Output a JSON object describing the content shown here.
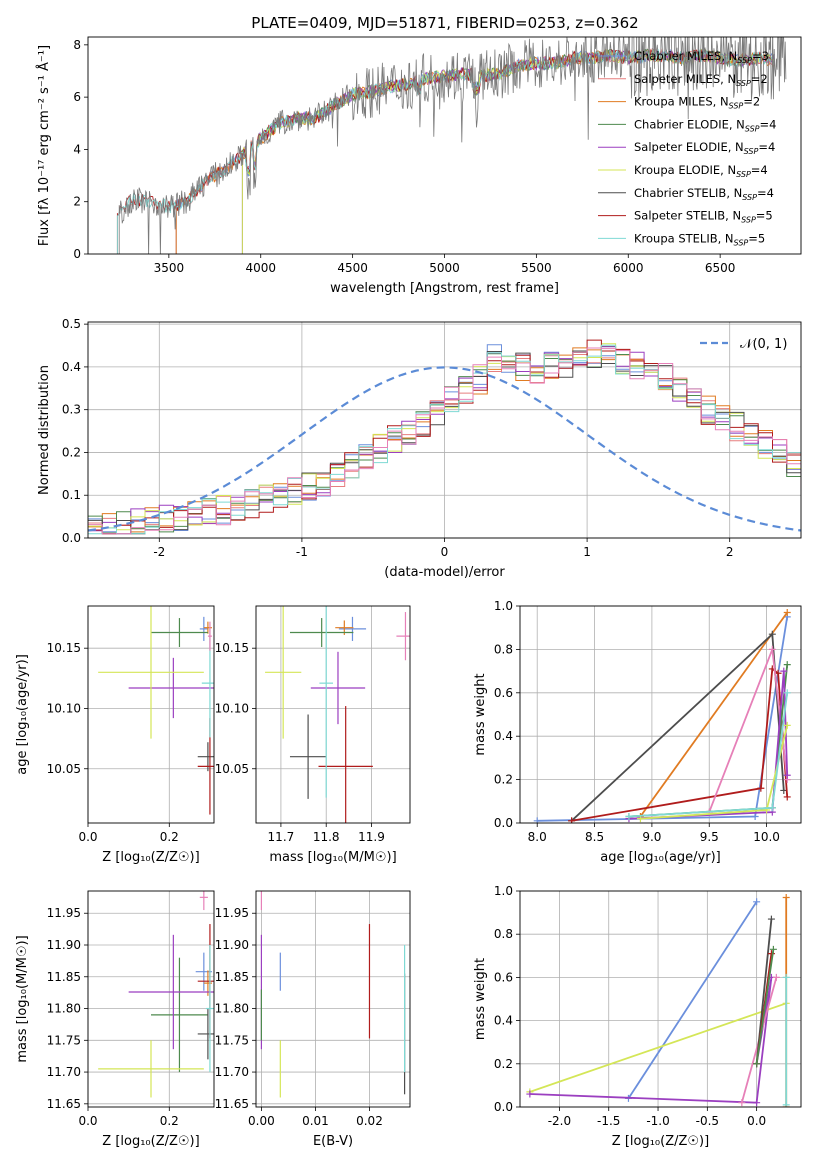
{
  "figure_title": "PLATE=0409, MJD=51871, FIBERID=0253, z=0.362",
  "colors": {
    "Chabrier MILES": "#6b8fdc",
    "Salpeter MILES": "#e77f7f",
    "Kroupa MILES": "#e07b22",
    "Chabrier ELODIE": "#4e8a4e",
    "Salpeter ELODIE": "#9b3fc0",
    "Kroupa ELODIE": "#d4e657",
    "Chabrier STELIB": "#4d4d4d",
    "Salpeter STELIB": "#b01c1c",
    "Kroupa STELIB": "#7fd9d4",
    "Pink": "#e680b8",
    "Green2": "#90d090",
    "grid": "#b0b0b0"
  },
  "chart_data": [
    {
      "id": "spectrum",
      "type": "line",
      "title": "PLATE=0409, MJD=51871, FIBERID=0253, z=0.362",
      "xlabel": "wavelength [Angstrom, rest frame]",
      "ylabel": "Flux [fλ 10⁻¹⁷ erg cm⁻² s⁻¹ Å⁻¹]",
      "xlim": [
        3060,
        6940
      ],
      "ylim": [
        0,
        8.3
      ],
      "xticks": [
        3500,
        4000,
        4500,
        5000,
        5500,
        6000,
        6500
      ],
      "yticks": [
        0,
        2,
        4,
        6,
        8
      ],
      "continuum_points": [
        [
          3200,
          1.3
        ],
        [
          3250,
          1.7
        ],
        [
          3300,
          2.1
        ],
        [
          3400,
          2.0
        ],
        [
          3500,
          1.8
        ],
        [
          3600,
          2.0
        ],
        [
          3700,
          2.8
        ],
        [
          3800,
          3.2
        ],
        [
          3900,
          3.8
        ],
        [
          4000,
          4.4
        ],
        [
          4100,
          5.0
        ],
        [
          4200,
          5.2
        ],
        [
          4300,
          5.2
        ],
        [
          4400,
          5.7
        ],
        [
          4500,
          6.1
        ],
        [
          4600,
          6.2
        ],
        [
          4700,
          6.4
        ],
        [
          4800,
          6.5
        ],
        [
          4900,
          6.7
        ],
        [
          5000,
          6.8
        ],
        [
          5100,
          6.9
        ],
        [
          5200,
          6.8
        ],
        [
          5300,
          6.9
        ],
        [
          5400,
          7.2
        ],
        [
          5500,
          7.3
        ],
        [
          5600,
          7.3
        ],
        [
          5700,
          7.5
        ],
        [
          5800,
          7.5
        ],
        [
          5900,
          7.6
        ],
        [
          6000,
          7.5
        ],
        [
          6100,
          7.6
        ],
        [
          6200,
          7.6
        ],
        [
          6300,
          7.5
        ],
        [
          6400,
          7.6
        ],
        [
          6500,
          7.5
        ],
        [
          6600,
          7.4
        ],
        [
          6700,
          7.5
        ],
        [
          6800,
          7.4
        ]
      ],
      "legend": [
        "Chabrier MILES, N_SSP=3",
        "Salpeter MILES, N_SSP=2",
        "Kroupa MILES, N_SSP=2",
        "Chabrier ELODIE, N_SSP=4",
        "Salpeter ELODIE, N_SSP=4",
        "Kroupa ELODIE, N_SSP=4",
        "Chabrier STELIB, N_SSP=4",
        "Salpeter STELIB, N_SSP=5",
        "Kroupa STELIB, N_SSP=5"
      ],
      "legend_location": "lower right"
    },
    {
      "id": "residuals",
      "type": "line",
      "xlabel": "(data-model)/error",
      "ylabel": "Normed distribution",
      "xlim": [
        -2.5,
        2.5
      ],
      "ylim": [
        0,
        0.505
      ],
      "xticks": [
        -2,
        -1,
        0,
        1,
        2
      ],
      "yticks": [
        0.0,
        0.1,
        0.2,
        0.3,
        0.4,
        0.5
      ],
      "legend": [
        "𝒩(0, 1)"
      ],
      "legend_location": "upper right",
      "bin_width": 0.1,
      "bin_start": -2.5,
      "base_hist": [
        0.025,
        0.028,
        0.03,
        0.035,
        0.04,
        0.045,
        0.05,
        0.055,
        0.06,
        0.065,
        0.07,
        0.08,
        0.09,
        0.1,
        0.11,
        0.12,
        0.13,
        0.15,
        0.17,
        0.19,
        0.21,
        0.23,
        0.25,
        0.27,
        0.29,
        0.32,
        0.35,
        0.37,
        0.42,
        0.42,
        0.4,
        0.39,
        0.4,
        0.4,
        0.41,
        0.43,
        0.42,
        0.41,
        0.4,
        0.39,
        0.38,
        0.34,
        0.32,
        0.3,
        0.28,
        0.26,
        0.24,
        0.22,
        0.2,
        0.17,
        0.14,
        0.12,
        0.1,
        0.09,
        0.08,
        0.07,
        0.06,
        0.05,
        0.045,
        0.04,
        0.035,
        0.03,
        0.03,
        0.028,
        0.025,
        0.03,
        0.035,
        0.04,
        0.03,
        0.035
      ]
    },
    {
      "id": "age_vs_Z",
      "type": "scatter",
      "xlabel": "Z [log₁₀(Z/Z☉)]",
      "ylabel": "age  [log₁₀(age/yr)]",
      "xlim": [
        0.0,
        0.31
      ],
      "ylim": [
        10.005,
        10.185
      ],
      "xticks": [
        0.0,
        0.2
      ],
      "yticks": [
        10.05,
        10.1,
        10.15
      ],
      "points": [
        {
          "series": "Chabrier MILES",
          "x": 0.285,
          "y": 10.166,
          "xerr": 0.01,
          "yerr": 0.01
        },
        {
          "series": "Kroupa MILES",
          "x": 0.295,
          "y": 10.167,
          "xerr": 0.01,
          "yerr": 0.005
        },
        {
          "series": "Chabrier ELODIE",
          "x": 0.225,
          "y": 10.163,
          "xerr": 0.07,
          "yerr": 0.012
        },
        {
          "series": "Salpeter ELODIE",
          "x": 0.21,
          "y": 10.117,
          "xerr": 0.11,
          "yerr": 0.025
        },
        {
          "series": "Kroupa ELODIE",
          "x": 0.155,
          "y": 10.13,
          "xerr": 0.13,
          "yerr": 0.055
        },
        {
          "series": "Chabrier STELIB",
          "x": 0.295,
          "y": 10.06,
          "xerr": 0.025,
          "yerr": 0.012
        },
        {
          "series": "Salpeter STELIB",
          "x": 0.3,
          "y": 10.052,
          "xerr": 0.03,
          "yerr": 0.04
        },
        {
          "series": "Kroupa STELIB",
          "x": 0.3,
          "y": 10.121,
          "xerr": 0.02,
          "yerr": 0.045
        },
        {
          "series": "Pink",
          "x": 0.3,
          "y": 10.16,
          "xerr": 0.005,
          "yerr": 0.012
        }
      ]
    },
    {
      "id": "age_vs_mass",
      "type": "scatter",
      "xlabel": "mass [log₁₀(M/M☉)]",
      "xlim": [
        11.645,
        11.985
      ],
      "ylim": [
        10.005,
        10.185
      ],
      "xticks": [
        11.7,
        11.8,
        11.9
      ],
      "yticks": [
        10.05,
        10.1,
        10.15
      ],
      "points": [
        {
          "series": "Chabrier MILES",
          "x": 11.858,
          "y": 10.166,
          "xerr": 0.03,
          "yerr": 0.01
        },
        {
          "series": "Kroupa MILES",
          "x": 11.84,
          "y": 10.167,
          "xerr": 0.02,
          "yerr": 0.006
        },
        {
          "series": "Chabrier ELODIE",
          "x": 11.79,
          "y": 10.163,
          "xerr": 0.07,
          "yerr": 0.012
        },
        {
          "series": "Salpeter ELODIE",
          "x": 11.826,
          "y": 10.117,
          "xerr": 0.06,
          "yerr": 0.03
        },
        {
          "series": "Kroupa ELODIE",
          "x": 11.705,
          "y": 10.13,
          "xerr": 0.04,
          "yerr": 0.055
        },
        {
          "series": "Chabrier STELIB",
          "x": 11.76,
          "y": 10.06,
          "xerr": 0.04,
          "yerr": 0.035
        },
        {
          "series": "Salpeter STELIB",
          "x": 11.843,
          "y": 10.052,
          "xerr": 0.06,
          "yerr": 0.05
        },
        {
          "series": "Kroupa STELIB",
          "x": 11.8,
          "y": 10.121,
          "xerr": 0.015,
          "yerr": 0.095
        },
        {
          "series": "Pink",
          "x": 11.975,
          "y": 10.16,
          "xerr": 0.02,
          "yerr": 0.02
        }
      ]
    },
    {
      "id": "mw_vs_age",
      "type": "line",
      "xlabel": "age  [log₁₀(age/yr)]",
      "ylabel": "mass weight",
      "xlim": [
        7.85,
        10.3
      ],
      "ylim": [
        0.0,
        1.0
      ],
      "xticks": [
        8.0,
        8.5,
        9.0,
        9.5,
        10.0
      ],
      "yticks": [
        0.0,
        0.2,
        0.4,
        0.6,
        0.8,
        1.0
      ],
      "series": [
        {
          "name": "Chabrier MILES",
          "points": [
            [
              8.0,
              0.01
            ],
            [
              9.9,
              0.03
            ],
            [
              10.18,
              0.95
            ]
          ]
        },
        {
          "name": "Kroupa MILES",
          "points": [
            [
              8.9,
              0.03
            ],
            [
              10.18,
              0.97
            ]
          ]
        },
        {
          "name": "Chabrier STELIB",
          "points": [
            [
              8.3,
              0.01
            ],
            [
              10.05,
              0.87
            ],
            [
              10.15,
              0.15
            ]
          ]
        },
        {
          "name": "Salpeter STELIB",
          "points": [
            [
              8.3,
              0.01
            ],
            [
              9.95,
              0.16
            ],
            [
              10.05,
              0.71
            ],
            [
              10.1,
              0.69
            ],
            [
              10.18,
              0.12
            ]
          ]
        },
        {
          "name": "Pink",
          "points": [
            [
              9.5,
              0.05
            ],
            [
              10.05,
              0.8
            ],
            [
              10.18,
              0.2
            ]
          ]
        },
        {
          "name": "Chabrier ELODIE",
          "points": [
            [
              8.8,
              0.03
            ],
            [
              10.05,
              0.07
            ],
            [
              10.18,
              0.73
            ]
          ]
        },
        {
          "name": "Salpeter ELODIE",
          "points": [
            [
              8.8,
              0.02
            ],
            [
              10.05,
              0.05
            ],
            [
              10.15,
              0.7
            ],
            [
              10.18,
              0.22
            ]
          ]
        },
        {
          "name": "Kroupa ELODIE",
          "points": [
            [
              8.9,
              0.02
            ],
            [
              10.0,
              0.06
            ],
            [
              10.18,
              0.45
            ]
          ]
        },
        {
          "name": "Kroupa STELIB",
          "points": [
            [
              8.8,
              0.03
            ],
            [
              10.05,
              0.07
            ],
            [
              10.18,
              0.6
            ]
          ]
        }
      ]
    },
    {
      "id": "mass_vs_Z",
      "type": "scatter",
      "xlabel": "Z [log₁₀(Z/Z☉)]",
      "ylabel": "mass [log₁₀(M/M☉)]",
      "xlim": [
        0.0,
        0.31
      ],
      "ylim": [
        11.645,
        11.985
      ],
      "xticks": [
        0.0,
        0.2
      ],
      "yticks": [
        11.65,
        11.7,
        11.75,
        11.8,
        11.85,
        11.9,
        11.95
      ],
      "points": [
        {
          "series": "Chabrier MILES",
          "x": 0.285,
          "y": 11.858,
          "xerr": 0.02,
          "yerr": 0.03
        },
        {
          "series": "Kroupa MILES",
          "x": 0.295,
          "y": 11.84,
          "xerr": 0.01,
          "yerr": 0.02
        },
        {
          "series": "Chabrier ELODIE",
          "x": 0.225,
          "y": 11.79,
          "xerr": 0.07,
          "yerr": 0.09
        },
        {
          "series": "Salpeter ELODIE",
          "x": 0.21,
          "y": 11.826,
          "xerr": 0.11,
          "yerr": 0.09
        },
        {
          "series": "Kroupa ELODIE",
          "x": 0.155,
          "y": 11.705,
          "xerr": 0.13,
          "yerr": 0.045
        },
        {
          "series": "Chabrier STELIB",
          "x": 0.295,
          "y": 11.76,
          "xerr": 0.025,
          "yerr": 0.04
        },
        {
          "series": "Salpeter STELIB",
          "x": 0.3,
          "y": 11.843,
          "xerr": 0.03,
          "yerr": 0.09
        },
        {
          "series": "Kroupa STELIB",
          "x": 0.3,
          "y": 11.8,
          "xerr": 0.01,
          "yerr": 0.1
        },
        {
          "series": "Pink",
          "x": 0.285,
          "y": 11.975,
          "xerr": 0.01,
          "yerr": 0.02
        }
      ]
    },
    {
      "id": "mass_vs_EBV",
      "type": "scatter",
      "xlabel": "E(B-V)",
      "xlim": [
        -0.001,
        0.0275
      ],
      "ylim": [
        11.645,
        11.985
      ],
      "xticks": [
        0.0,
        0.01,
        0.02
      ],
      "yticks": [
        11.65,
        11.7,
        11.75,
        11.8,
        11.85,
        11.9,
        11.95
      ],
      "points": [
        {
          "series": "Chabrier MILES",
          "x": 0.0035,
          "y": 11.858,
          "yerr": 0.03
        },
        {
          "series": "Salpeter ELODIE",
          "x": 0.0,
          "y": 11.826,
          "yerr": 0.09
        },
        {
          "series": "Kroupa ELODIE",
          "x": 0.0035,
          "y": 11.705,
          "yerr": 0.045
        },
        {
          "series": "Salpeter STELIB",
          "x": 0.02,
          "y": 11.843,
          "yerr": 0.09
        },
        {
          "series": "Chabrier STELIB",
          "x": 0.0265,
          "y": 11.76,
          "yerr": 0.095
        },
        {
          "series": "Kroupa STELIB",
          "x": 0.0265,
          "y": 11.8,
          "yerr": 0.1
        },
        {
          "series": "Pink",
          "x": 0.0,
          "y": 11.975,
          "yerr": 0.02
        },
        {
          "series": "Chabrier ELODIE",
          "x": 0.0,
          "y": 11.79,
          "yerr": 0.04
        }
      ]
    },
    {
      "id": "mw_vs_Z",
      "type": "line",
      "xlabel": "Z [log₁₀(Z/Z☉)]",
      "ylabel": "mass weight",
      "xlim": [
        -2.4,
        0.45
      ],
      "ylim": [
        0.0,
        1.0
      ],
      "xticks": [
        -2.0,
        -1.5,
        -1.0,
        -0.5,
        0.0
      ],
      "yticks": [
        0.0,
        0.2,
        0.4,
        0.6,
        0.8,
        1.0
      ],
      "series": [
        {
          "name": "Chabrier MILES",
          "points": [
            [
              -1.3,
              0.04
            ],
            [
              0.0,
              0.95
            ]
          ]
        },
        {
          "name": "Kroupa ELODIE",
          "points": [
            [
              -2.3,
              0.07
            ],
            [
              0.3,
              0.48
            ]
          ]
        },
        {
          "name": "Salpeter ELODIE",
          "points": [
            [
              -2.3,
              0.06
            ],
            [
              0.0,
              0.02
            ],
            [
              0.15,
              0.6
            ],
            [
              0.0,
              0.2
            ]
          ]
        },
        {
          "name": "Pink",
          "points": [
            [
              -0.15,
              0.02
            ],
            [
              0.2,
              0.6
            ]
          ]
        },
        {
          "name": "Chabrier STELIB",
          "points": [
            [
              0.0,
              0.2
            ],
            [
              0.15,
              0.87
            ]
          ]
        },
        {
          "name": "Salpeter STELIB",
          "points": [
            [
              0.0,
              0.2
            ],
            [
              0.15,
              0.71
            ]
          ]
        },
        {
          "name": "Chabrier ELODIE",
          "points": [
            [
              0.0,
              0.2
            ],
            [
              0.17,
              0.73
            ]
          ]
        },
        {
          "name": "Kroupa MILES",
          "points": [
            [
              0.3,
              0.0
            ],
            [
              0.3,
              0.97
            ]
          ]
        },
        {
          "name": "Kroupa STELIB",
          "points": [
            [
              0.3,
              0.01
            ],
            [
              0.3,
              0.6
            ]
          ]
        }
      ]
    }
  ]
}
